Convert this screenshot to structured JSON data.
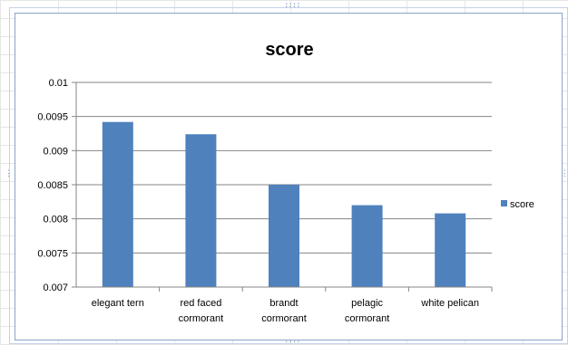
{
  "chart_data": {
    "type": "bar",
    "title": "score",
    "categories": [
      "elegant tern",
      "red faced cormorant",
      "brandt cormorant",
      "pelagic cormorant",
      "white pelican"
    ],
    "category_lines": [
      [
        "elegant tern"
      ],
      [
        "red faced",
        "cormorant"
      ],
      [
        "brandt",
        "cormorant"
      ],
      [
        "pelagic",
        "cormorant"
      ],
      [
        "white pelican"
      ]
    ],
    "series": [
      {
        "name": "score",
        "values": [
          0.00942,
          0.00924,
          0.0085,
          0.0082,
          0.00808
        ]
      }
    ],
    "ylim": [
      0.007,
      0.01
    ],
    "yticks": [
      "0.007",
      "0.0075",
      "0.008",
      "0.0085",
      "0.009",
      "0.0095",
      "0.01"
    ],
    "ytick_values": [
      0.007,
      0.0075,
      0.008,
      0.0085,
      0.009,
      0.0095,
      0.01
    ],
    "xlabel": "",
    "ylabel": "",
    "grid": true,
    "legend_position": "right",
    "colors": {
      "bar": "#4f81bd",
      "grid": "#868686",
      "axis": "#868686",
      "text": "#000000"
    }
  }
}
